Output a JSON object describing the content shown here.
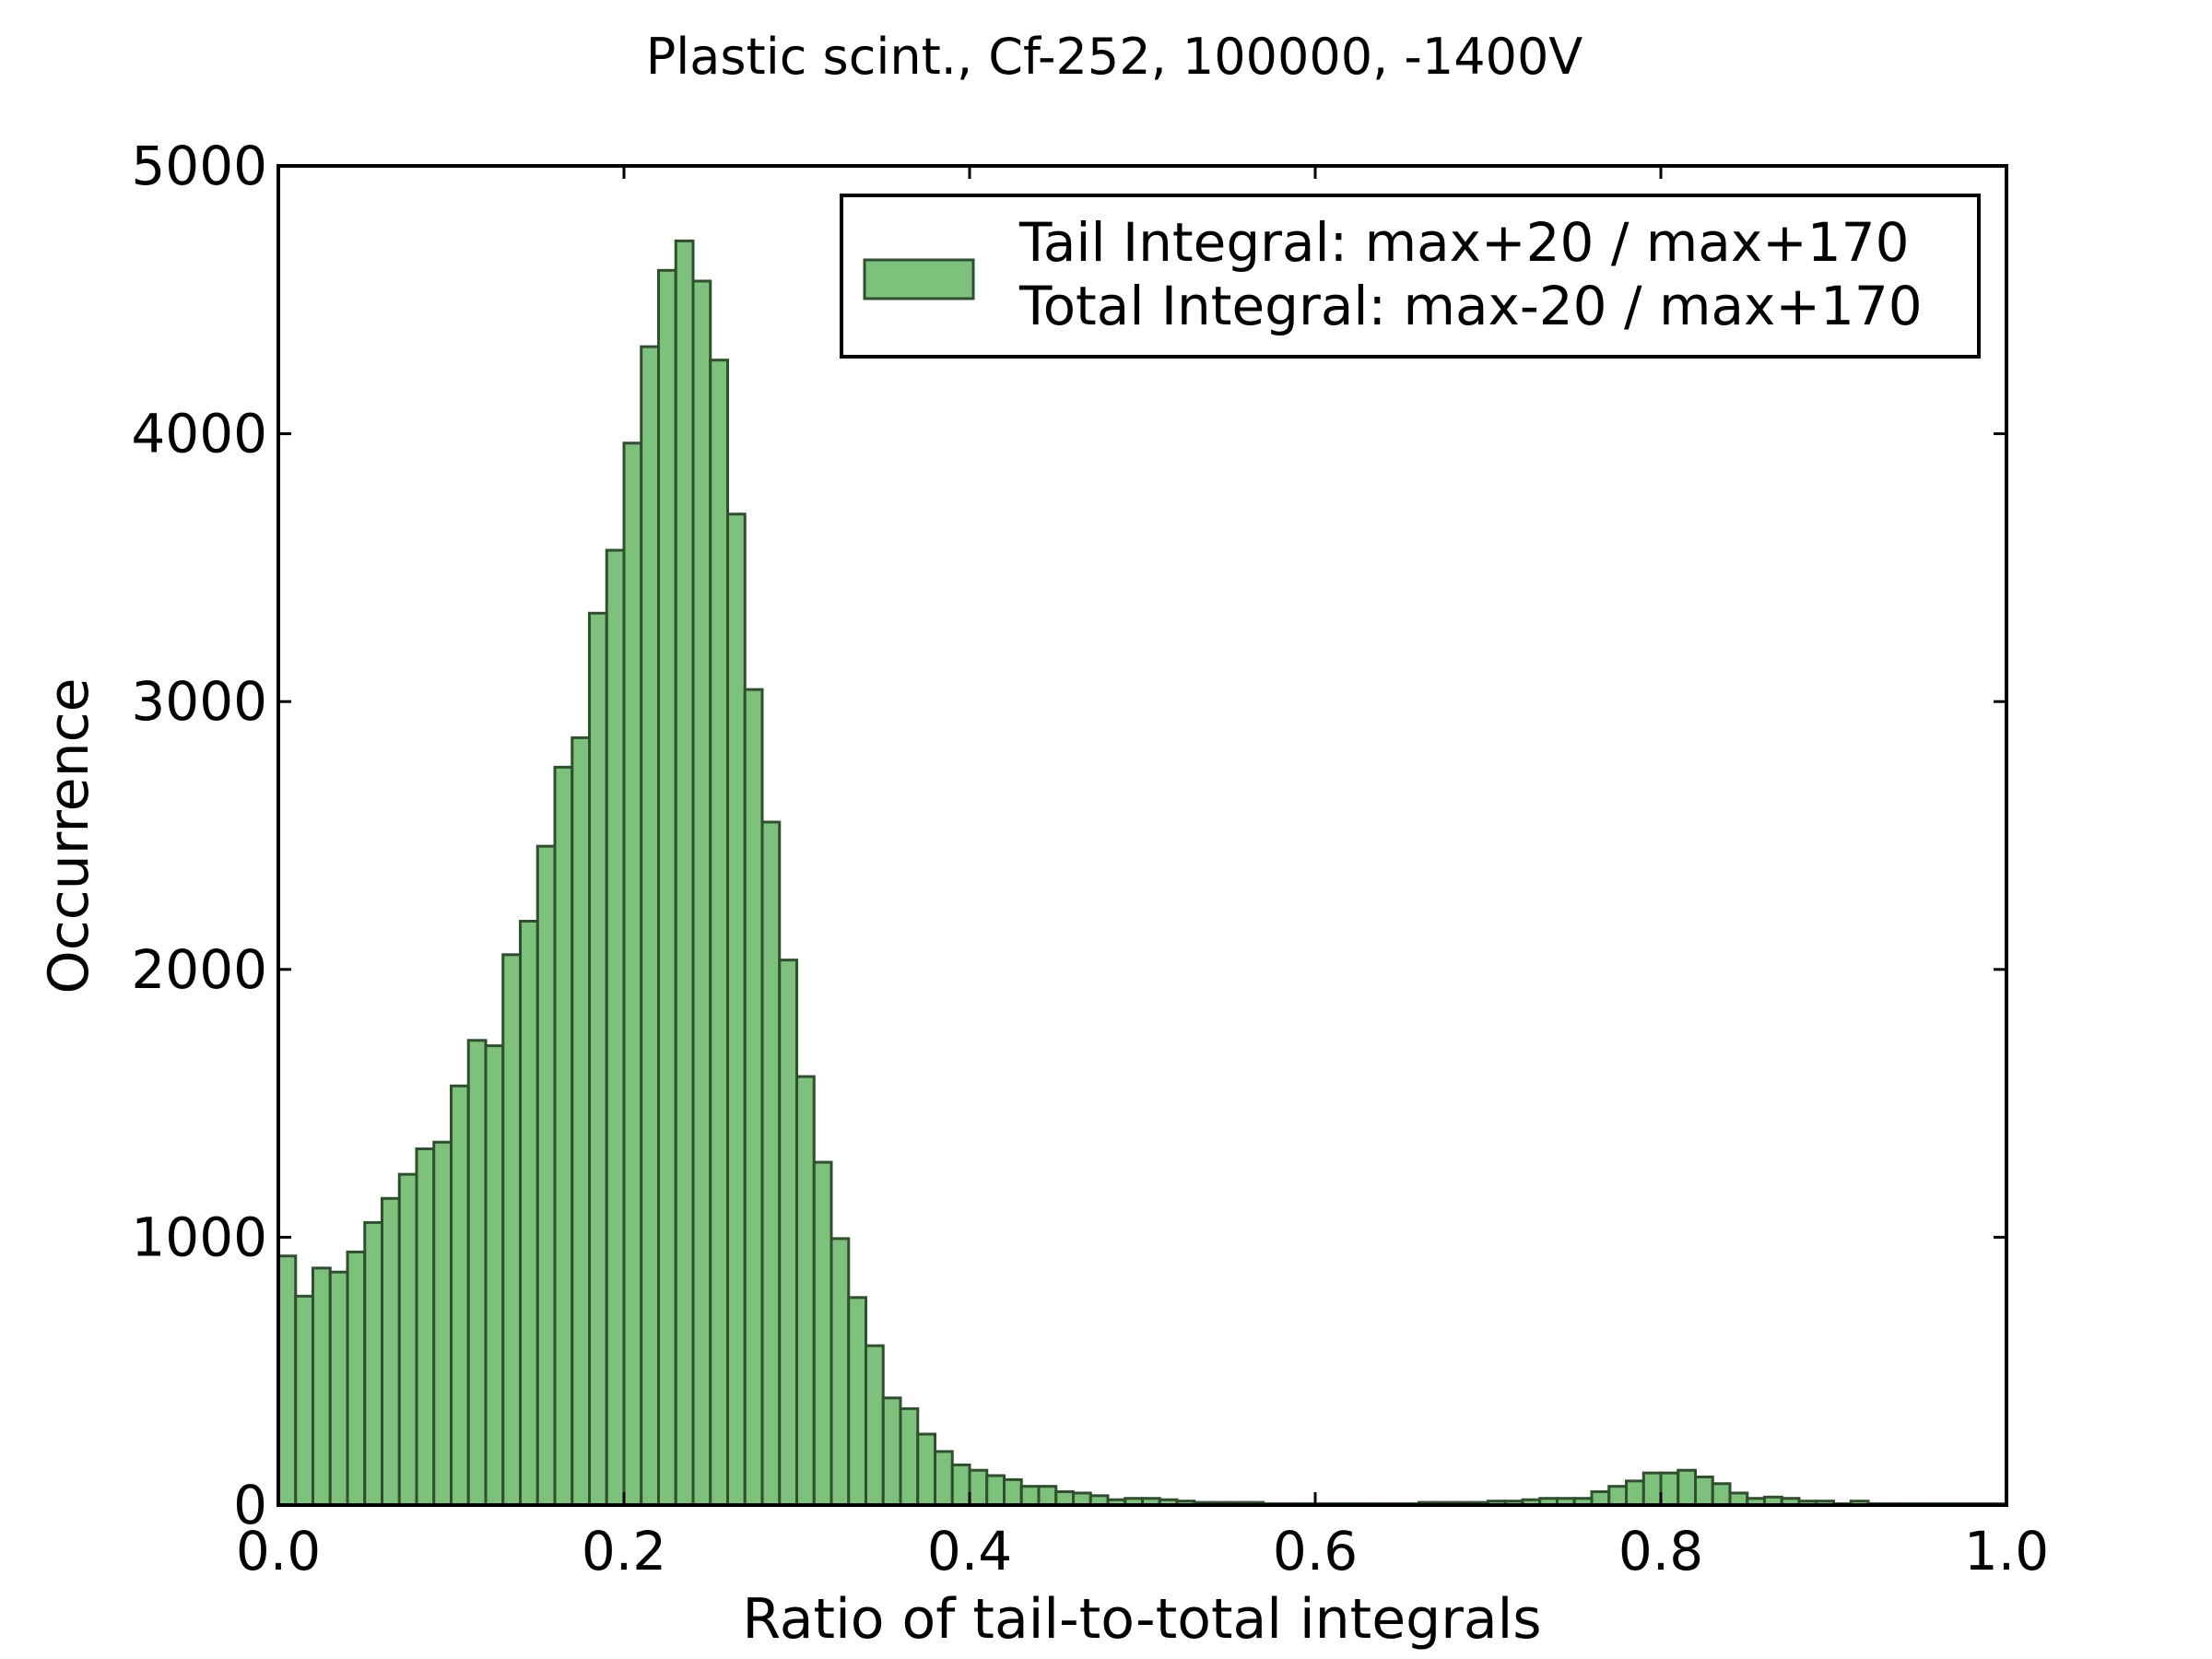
{
  "chart_data": {
    "type": "bar",
    "title": "Plastic scint., Cf-252, 100000, -1400V",
    "xlabel": "Ratio of tail-to-total integrals",
    "ylabel": "Occurrence",
    "xlim": [
      0.0,
      1.0
    ],
    "ylim": [
      0,
      5000
    ],
    "xticks": [
      "0.0",
      "0.2",
      "0.4",
      "0.6",
      "0.8",
      "1.0"
    ],
    "yticks": [
      "0",
      "1000",
      "2000",
      "3000",
      "4000",
      "5000"
    ],
    "grid": false,
    "legend_position": "top-right",
    "colors": {
      "bar_fill": "#7dc17d",
      "bar_edge": "#2f4f2f"
    },
    "series": [
      {
        "name": "Tail Integral: max+20 / max+170\nTotal Integral: max-20 / max+170",
        "legend_lines": [
          "Tail Integral: max+20 / max+170",
          "Total Integral: max-20 / max+170"
        ],
        "bin_width": 0.01,
        "x": [
          0.0,
          0.01,
          0.02,
          0.03,
          0.04,
          0.05,
          0.06,
          0.07,
          0.08,
          0.09,
          0.1,
          0.11,
          0.12,
          0.13,
          0.14,
          0.15,
          0.16,
          0.17,
          0.18,
          0.19,
          0.2,
          0.21,
          0.22,
          0.23,
          0.24,
          0.25,
          0.26,
          0.27,
          0.28,
          0.29,
          0.3,
          0.31,
          0.32,
          0.33,
          0.34,
          0.35,
          0.36,
          0.37,
          0.38,
          0.39,
          0.4,
          0.41,
          0.42,
          0.43,
          0.44,
          0.45,
          0.46,
          0.47,
          0.48,
          0.49,
          0.5,
          0.51,
          0.52,
          0.53,
          0.54,
          0.55,
          0.56,
          0.57,
          0.58,
          0.59,
          0.6,
          0.61,
          0.62,
          0.63,
          0.64,
          0.65,
          0.66,
          0.67,
          0.68,
          0.69,
          0.7,
          0.71,
          0.72,
          0.73,
          0.74,
          0.75,
          0.76,
          0.77,
          0.78,
          0.79,
          0.8,
          0.81,
          0.82,
          0.83,
          0.84,
          0.85,
          0.86,
          0.87,
          0.88,
          0.89,
          0.9,
          0.91,
          0.92,
          0.93,
          0.94,
          0.95,
          0.96,
          0.97,
          0.98,
          0.99
        ],
        "values": [
          930,
          780,
          885,
          870,
          945,
          1055,
          1145,
          1235,
          1330,
          1355,
          1565,
          1735,
          1715,
          2055,
          2180,
          2460,
          2755,
          2865,
          3330,
          3565,
          3965,
          4325,
          4610,
          4720,
          4570,
          4275,
          3700,
          3045,
          2550,
          2035,
          1600,
          1280,
          995,
          775,
          595,
          400,
          360,
          265,
          200,
          150,
          130,
          110,
          95,
          70,
          70,
          50,
          45,
          35,
          20,
          25,
          25,
          20,
          15,
          10,
          10,
          10,
          10,
          5,
          5,
          5,
          5,
          5,
          5,
          5,
          5,
          5,
          10,
          10,
          10,
          10,
          15,
          15,
          20,
          25,
          25,
          25,
          50,
          70,
          90,
          120,
          120,
          130,
          105,
          80,
          45,
          25,
          30,
          25,
          15,
          15,
          5,
          15,
          5,
          5,
          5,
          5,
          5,
          5,
          5,
          5
        ]
      }
    ]
  }
}
